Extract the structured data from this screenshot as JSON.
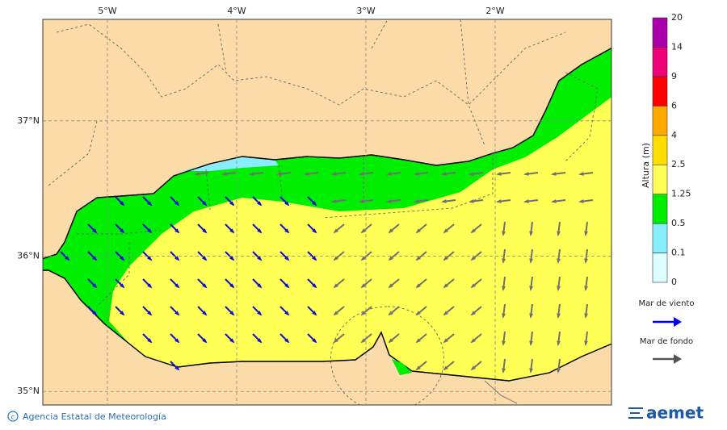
{
  "map": {
    "lon_range": [
      -5.5,
      -1.1
    ],
    "lat_range": [
      34.9,
      37.75
    ],
    "lon_ticks": [
      {
        "value": -5,
        "label": "5°W"
      },
      {
        "value": -4,
        "label": "4°W"
      },
      {
        "value": -3,
        "label": "3°W"
      },
      {
        "value": -2,
        "label": "2°W"
      }
    ],
    "lat_ticks": [
      {
        "value": 37,
        "label": "37°N"
      },
      {
        "value": 36,
        "label": "36°N"
      },
      {
        "value": 35,
        "label": "35°N"
      }
    ]
  },
  "legend": {
    "title": "Altura (m)",
    "levels": [
      0,
      0.1,
      0.5,
      1.25,
      2.5,
      4,
      6,
      9,
      14,
      20
    ],
    "colors": [
      "#ddffff",
      "#88eeff",
      "#00ee00",
      "#ffff55",
      "#ffdd00",
      "#ffaa00",
      "#ff0000",
      "#ee0077",
      "#aa00aa"
    ],
    "wind_sea": "Mar de viento",
    "swell": "Mar de fondo"
  },
  "footer": {
    "credit": "Agencia Estatal de Meteorología",
    "logo": "aemet"
  }
}
